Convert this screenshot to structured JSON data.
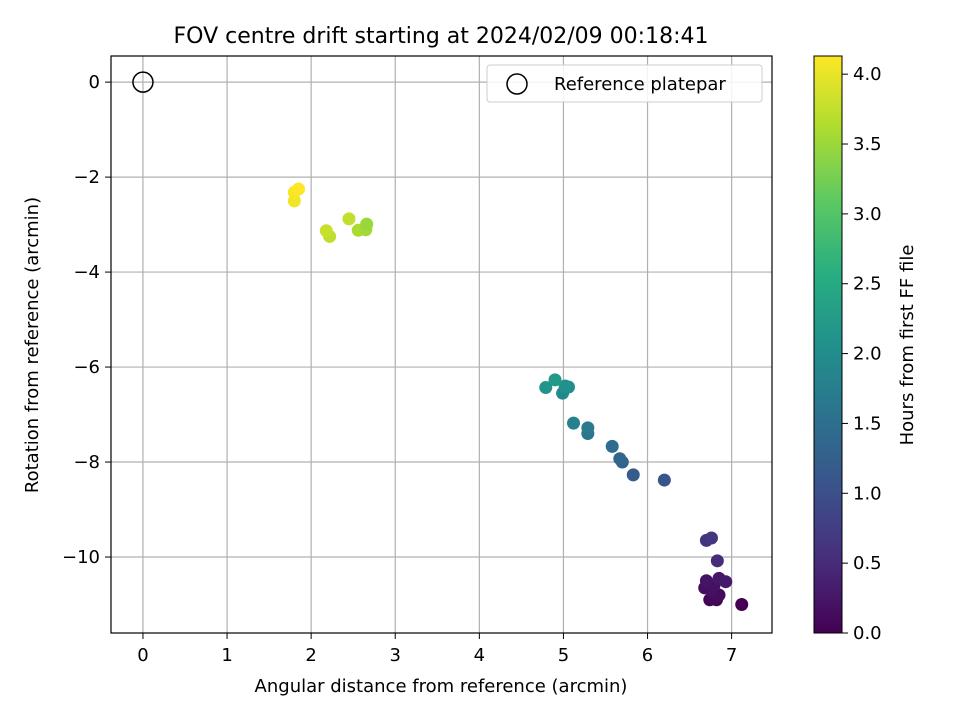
{
  "chart_data": {
    "type": "scatter",
    "title": "FOV centre drift starting at 2024/02/09 00:18:41",
    "xlabel": "Angular distance from reference (arcmin)",
    "ylabel": "Rotation from reference (arcmin)",
    "xlim": [
      -0.38,
      7.48
    ],
    "ylim": [
      -11.6,
      0.55
    ],
    "x_ticks": [
      0,
      1,
      2,
      3,
      4,
      5,
      6,
      7
    ],
    "y_ticks": [
      0,
      -2,
      -4,
      -6,
      -8,
      -10
    ],
    "x_tick_labels": [
      "0",
      "1",
      "2",
      "3",
      "4",
      "5",
      "6",
      "7"
    ],
    "y_tick_labels": [
      "0",
      "−2",
      "−4",
      "−6",
      "−8",
      "−10"
    ],
    "grid": true,
    "colormap": "viridis",
    "reference": {
      "x": 0,
      "y": 0,
      "label": "Reference platepar"
    },
    "legend_position": "top-right",
    "colorbar": {
      "label": "Hours from first FF file",
      "min": 0.0,
      "max": 4.13,
      "ticks": [
        0.0,
        0.5,
        1.0,
        1.5,
        2.0,
        2.5,
        3.0,
        3.5,
        4.0
      ],
      "tick_labels": [
        "0.0",
        "0.5",
        "1.0",
        "1.5",
        "2.0",
        "2.5",
        "3.0",
        "3.5",
        "4.0"
      ]
    },
    "points": [
      {
        "x": 7.12,
        "y": -11.0,
        "t": 0.0
      },
      {
        "x": 6.74,
        "y": -10.9,
        "t": 0.03
      },
      {
        "x": 6.82,
        "y": -10.9,
        "t": 0.06
      },
      {
        "x": 6.78,
        "y": -10.85,
        "t": 0.09
      },
      {
        "x": 6.85,
        "y": -10.8,
        "t": 0.12
      },
      {
        "x": 6.68,
        "y": -10.65,
        "t": 0.15
      },
      {
        "x": 6.76,
        "y": -10.7,
        "t": 0.18
      },
      {
        "x": 6.79,
        "y": -10.6,
        "t": 0.2
      },
      {
        "x": 6.7,
        "y": -10.5,
        "t": 0.23
      },
      {
        "x": 6.85,
        "y": -10.45,
        "t": 0.26
      },
      {
        "x": 6.93,
        "y": -10.52,
        "t": 0.29
      },
      {
        "x": 6.83,
        "y": -10.08,
        "t": 0.5
      },
      {
        "x": 6.7,
        "y": -9.65,
        "t": 0.6
      },
      {
        "x": 6.76,
        "y": -9.6,
        "t": 0.65
      },
      {
        "x": 6.2,
        "y": -8.38,
        "t": 1.08
      },
      {
        "x": 5.83,
        "y": -8.27,
        "t": 1.2
      },
      {
        "x": 5.7,
        "y": -8.0,
        "t": 1.3
      },
      {
        "x": 5.67,
        "y": -7.93,
        "t": 1.36
      },
      {
        "x": 5.58,
        "y": -7.67,
        "t": 1.45
      },
      {
        "x": 5.29,
        "y": -7.4,
        "t": 1.62
      },
      {
        "x": 5.29,
        "y": -7.28,
        "t": 1.7
      },
      {
        "x": 5.12,
        "y": -7.18,
        "t": 1.78
      },
      {
        "x": 4.99,
        "y": -6.55,
        "t": 1.95
      },
      {
        "x": 5.06,
        "y": -6.42,
        "t": 2.02
      },
      {
        "x": 5.02,
        "y": -6.4,
        "t": 2.07
      },
      {
        "x": 4.79,
        "y": -6.43,
        "t": 2.12
      },
      {
        "x": 4.9,
        "y": -6.27,
        "t": 2.2
      },
      {
        "x": 2.22,
        "y": -3.25,
        "t": 3.72
      },
      {
        "x": 2.18,
        "y": -3.13,
        "t": 3.78
      },
      {
        "x": 2.56,
        "y": -3.12,
        "t": 3.6
      },
      {
        "x": 2.65,
        "y": -3.11,
        "t": 3.55
      },
      {
        "x": 2.66,
        "y": -2.99,
        "t": 3.48
      },
      {
        "x": 2.45,
        "y": -2.88,
        "t": 3.75
      },
      {
        "x": 1.8,
        "y": -2.5,
        "t": 4.05
      },
      {
        "x": 1.8,
        "y": -2.32,
        "t": 4.1
      },
      {
        "x": 1.85,
        "y": -2.25,
        "t": 4.13
      }
    ]
  }
}
